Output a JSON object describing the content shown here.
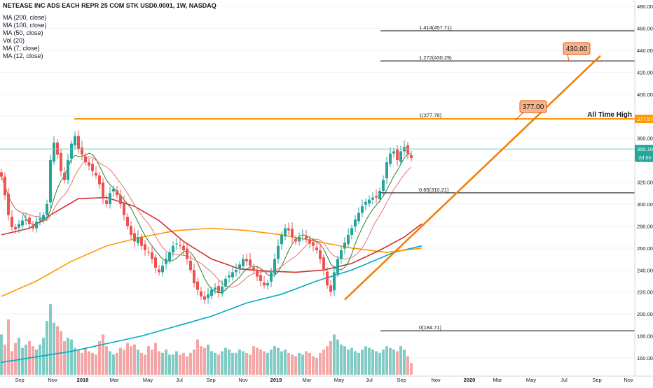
{
  "header": {
    "symbol_line": "NETEASE INC ADS EACH REPR 25 COM STK USD0.0001, 1W, NASDAQ",
    "indicators": [
      "MA (200, close)",
      "MA (100, close)",
      "MA (50, close)",
      "Vol (20)",
      "MA (7, close)",
      "MA (12, close)"
    ]
  },
  "colors": {
    "up_candle": "#26a69a",
    "down_candle": "#ef5350",
    "up_volume": "#80cbc4",
    "down_volume": "#f4a6a6",
    "ma200": "#00acc1",
    "ma100": "#ff9800",
    "ma50": "#d32f2f",
    "ma7": "#2e7d32",
    "ma12": "#e57373",
    "fib": "#000000",
    "ath": "#ff9800",
    "trendline": "#f57c00",
    "label_bg": "#f7b48a",
    "label_border": "#e65100",
    "price_badge": "#26a69a"
  },
  "chart_data": {
    "type": "candlestick",
    "title": "NETEASE INC ADS EACH REPR 25 COM STK USD0.0001, 1W, NASDAQ",
    "x_tick_labels": [
      "Sep",
      "Nov",
      "2018",
      "Mar",
      "May",
      "Jul",
      "Sep",
      "Nov",
      "2019",
      "Mar",
      "May",
      "Jul",
      "Sep",
      "Nov",
      "2020",
      "Mar",
      "May",
      "Jul",
      "Sep",
      "Nov"
    ],
    "y_tick_labels": [
      "160.00",
      "180.00",
      "200.00",
      "220.00",
      "240.00",
      "260.00",
      "280.00",
      "300.00",
      "320.00",
      "340.00",
      "360.00",
      "380.00",
      "400.00",
      "420.00",
      "440.00",
      "460.00",
      "480.00"
    ],
    "ylim": [
      146,
      488
    ],
    "price_closes": [
      325,
      308,
      290,
      279,
      277,
      282,
      285,
      286,
      282,
      278,
      284,
      287,
      290,
      300,
      340,
      356,
      345,
      330,
      322,
      340,
      355,
      362,
      350,
      345,
      338,
      335,
      330,
      326,
      318,
      305,
      300,
      310,
      314,
      308,
      300,
      290,
      280,
      272,
      266,
      270,
      262,
      258,
      256,
      250,
      242,
      238,
      244,
      250,
      256,
      262,
      264,
      262,
      258,
      250,
      240,
      228,
      222,
      216,
      213,
      218,
      222,
      224,
      220,
      225,
      232,
      235,
      238,
      240,
      245,
      250,
      248,
      244,
      240,
      234,
      230,
      226,
      228,
      238,
      250,
      262,
      272,
      278,
      276,
      270,
      266,
      270,
      272,
      268,
      264,
      262,
      258,
      250,
      240,
      226,
      220,
      238,
      250,
      258,
      265,
      272,
      278,
      286,
      292,
      298,
      302,
      304,
      306,
      306,
      312,
      322,
      338,
      346,
      348,
      340,
      348,
      352,
      346,
      342
    ],
    "volume_bars": [
      48,
      36,
      66,
      28,
      38,
      44,
      32,
      36,
      40,
      34,
      30,
      36,
      44,
      64,
      84,
      62,
      58,
      52,
      40,
      44,
      42,
      32,
      30,
      26,
      32,
      28,
      26,
      24,
      40,
      48,
      34,
      28,
      24,
      26,
      32,
      30,
      38,
      34,
      36,
      30,
      26,
      24,
      34,
      30,
      38,
      28,
      26,
      30,
      24,
      24,
      28,
      24,
      26,
      22,
      26,
      30,
      42,
      34,
      32,
      36,
      28,
      26,
      24,
      28,
      32,
      30,
      26,
      26,
      30,
      28,
      26,
      24,
      34,
      32,
      30,
      28,
      26,
      30,
      34,
      32,
      28,
      30,
      26,
      24,
      22,
      26,
      24,
      28,
      26,
      22,
      20,
      26,
      30,
      34,
      40,
      48,
      42,
      36,
      34,
      30,
      32,
      28,
      26,
      30,
      34,
      32,
      30,
      28,
      26,
      30,
      34,
      32,
      30,
      28,
      34,
      30,
      22,
      14
    ],
    "moving_averages": [
      {
        "name": "MA (200, close)",
        "color_key": "ma200",
        "points": [
          [
            0,
            156
          ],
          [
            20,
            166
          ],
          [
            40,
            180
          ],
          [
            60,
            198
          ],
          [
            70,
            210
          ],
          [
            80,
            218
          ],
          [
            90,
            230
          ],
          [
            100,
            240
          ],
          [
            112,
            256
          ],
          [
            120,
            262
          ]
        ]
      },
      {
        "name": "MA (100, close)",
        "color_key": "ma100",
        "points": [
          [
            0,
            216
          ],
          [
            10,
            230
          ],
          [
            20,
            248
          ],
          [
            30,
            262
          ],
          [
            40,
            270
          ],
          [
            50,
            276
          ],
          [
            60,
            278
          ],
          [
            70,
            276
          ],
          [
            80,
            272
          ],
          [
            90,
            266
          ],
          [
            100,
            260
          ],
          [
            110,
            256
          ],
          [
            120,
            260
          ]
        ]
      },
      {
        "name": "MA (50, close)",
        "color_key": "ma50",
        "points": [
          [
            0,
            272
          ],
          [
            8,
            278
          ],
          [
            15,
            292
          ],
          [
            22,
            305
          ],
          [
            30,
            306
          ],
          [
            38,
            298
          ],
          [
            45,
            285
          ],
          [
            52,
            266
          ],
          [
            60,
            250
          ],
          [
            68,
            241
          ],
          [
            76,
            239
          ],
          [
            84,
            238
          ],
          [
            92,
            240
          ],
          [
            100,
            246
          ],
          [
            108,
            258
          ],
          [
            115,
            270
          ],
          [
            120,
            282
          ]
        ]
      }
    ],
    "fib_levels": [
      {
        "label": "1.414(457.71)",
        "price": 457.71
      },
      {
        "label": "1.272(430.29)",
        "price": 430.29
      },
      {
        "label": "1(377.78)",
        "price": 377.78
      },
      {
        "label": "0.65(310.21)",
        "price": 310.21
      },
      {
        "label": "0(184.71)",
        "price": 184.71
      }
    ],
    "horizontal_lines": [
      {
        "name": "All Time High",
        "price": 377.57,
        "label": "All Time High"
      }
    ],
    "trendline": {
      "from": [
        98,
        213
      ],
      "to": [
        171,
        435
      ]
    },
    "targets": [
      "377.00",
      "430.00"
    ],
    "current_price": "350.10",
    "countdown": "2d 6h",
    "ath_price_label": "377.57"
  }
}
